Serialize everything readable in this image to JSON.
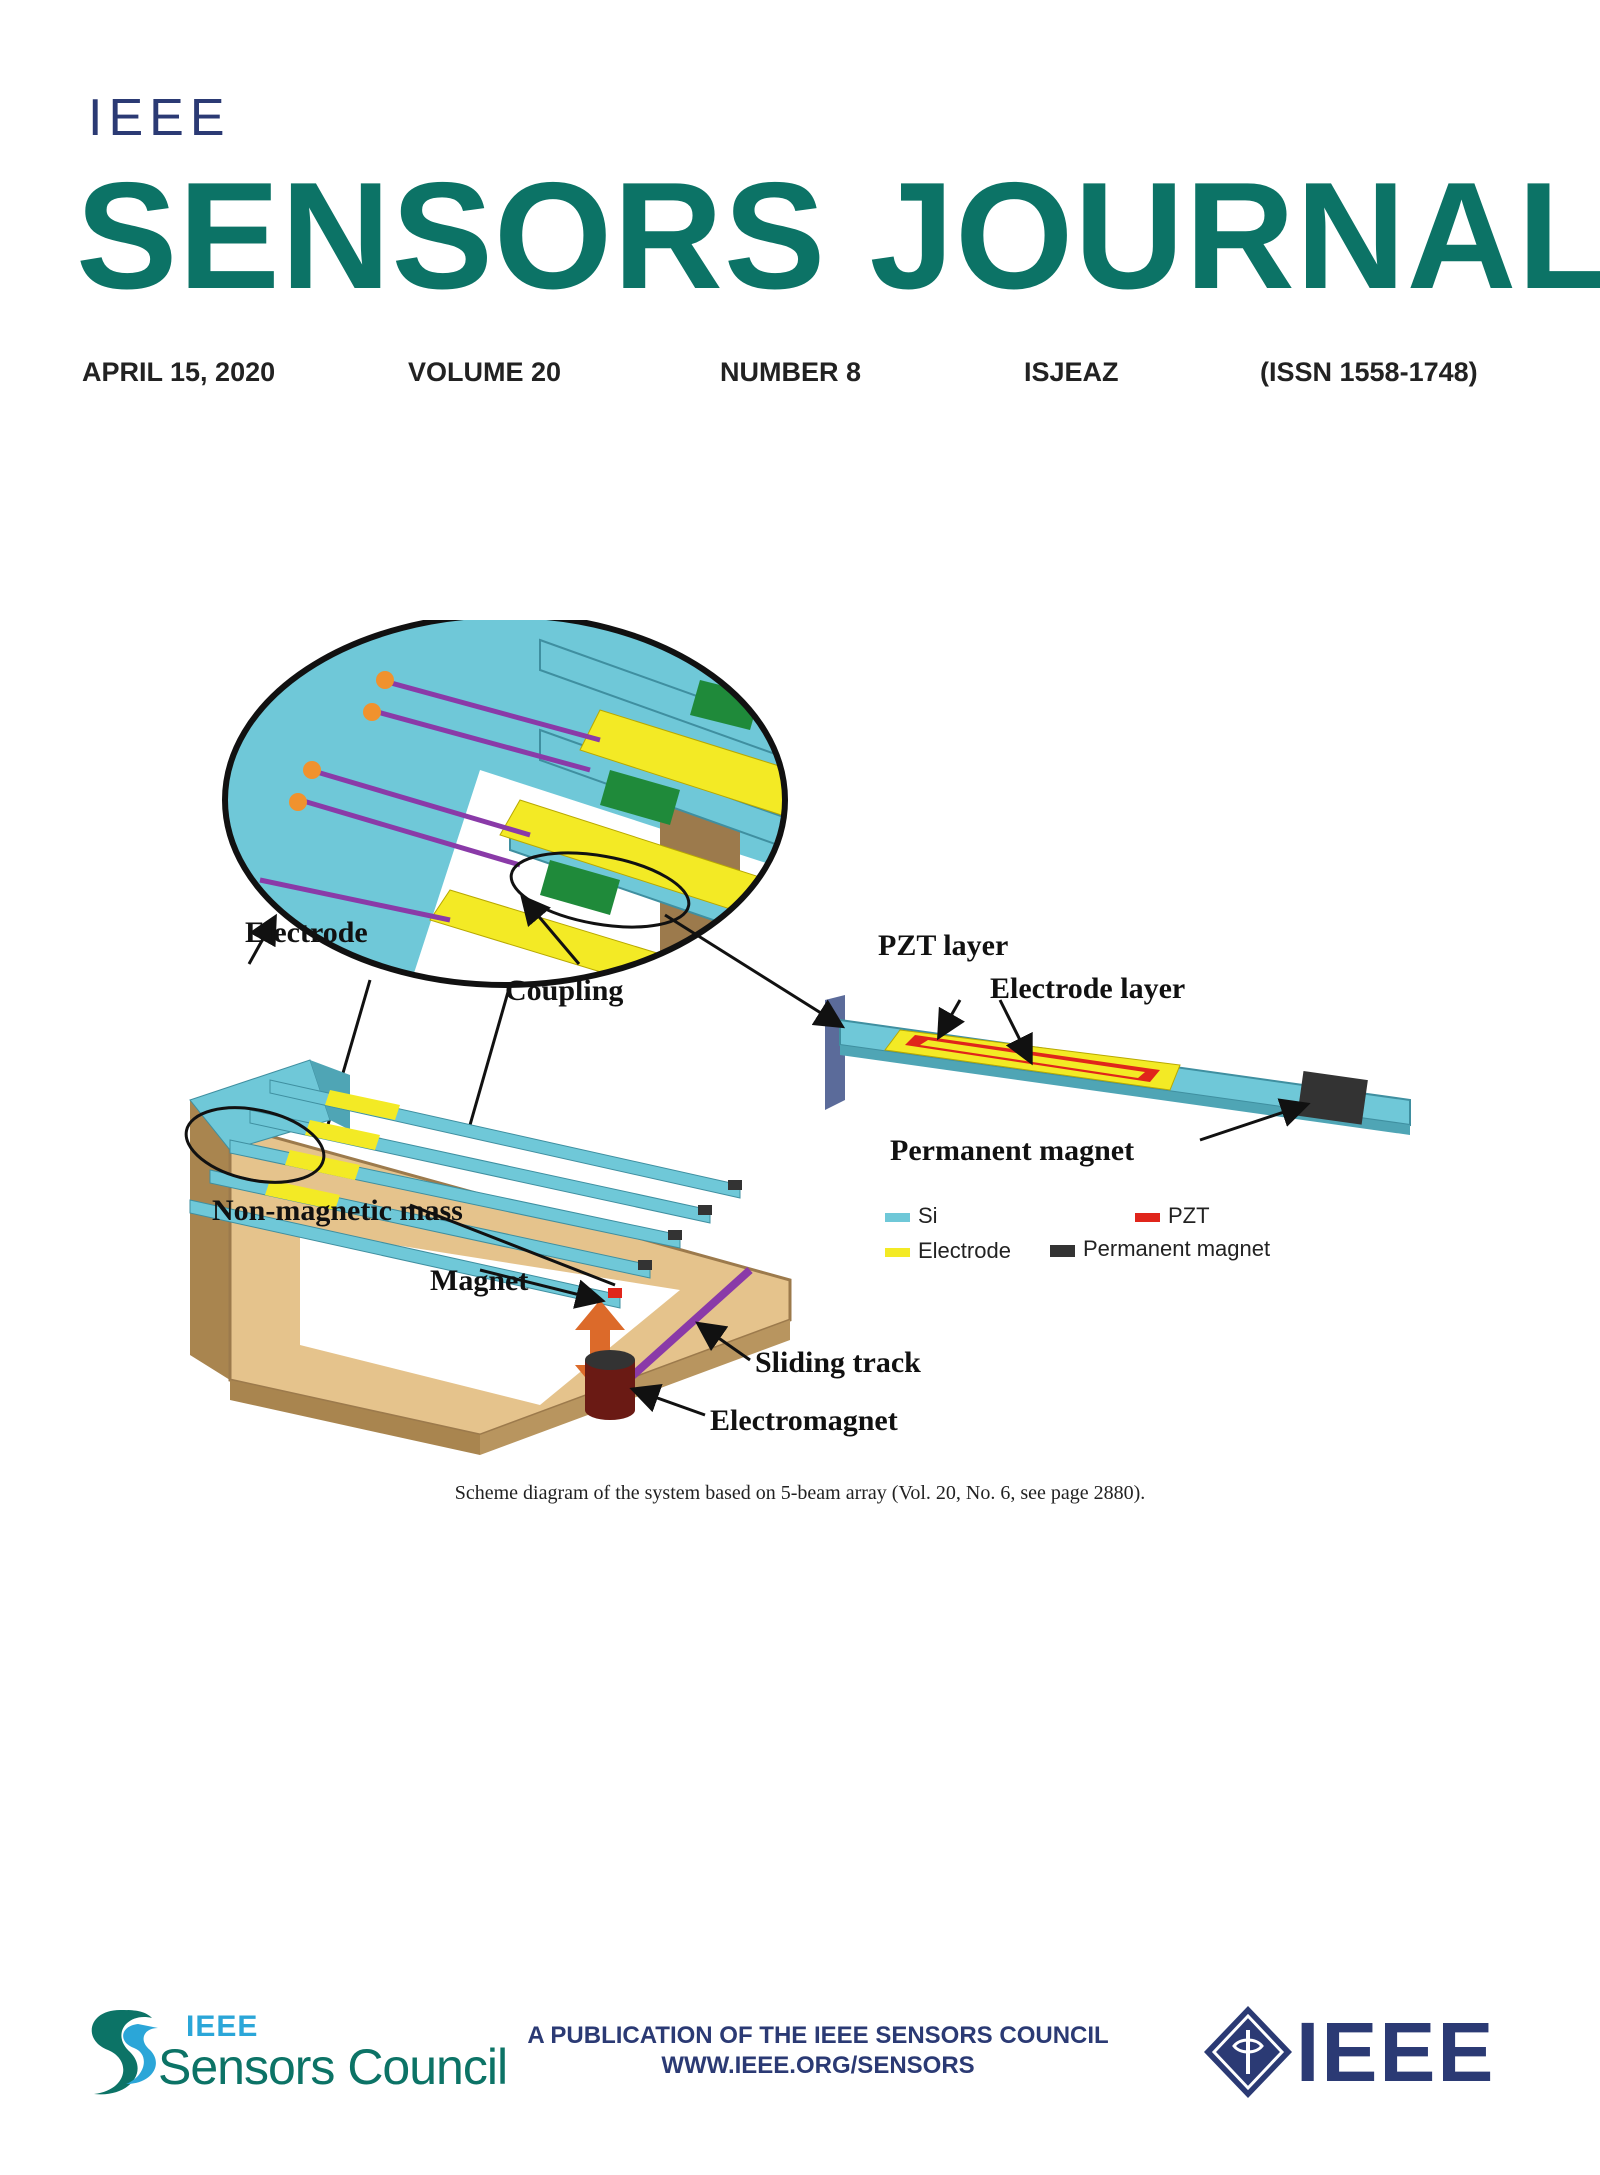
{
  "header": {
    "brand": "IEEE",
    "title": "SENSORS JOURNAL",
    "date": "APRIL 15, 2020",
    "volume": "VOLUME 20",
    "number": "NUMBER 8",
    "code": "ISJEAZ",
    "issn": "(ISSN 1558-1748)"
  },
  "figure": {
    "labels": {
      "electrode": "Electrode",
      "coupling": "Coupling",
      "pzt_layer": "PZT layer",
      "electrode_layer": "Electrode layer",
      "permanent_magnet": "Permanent magnet",
      "non_magnetic_mass": "Non-magnetic mass",
      "magnet": "Magnet",
      "sliding_track": "Sliding track",
      "electromagnet": "Electromagnet"
    },
    "legend": {
      "si": "Si",
      "pzt": "PZT",
      "electrode": "Electrode",
      "permanent_magnet": "Permanent magnet"
    },
    "colors": {
      "si": "#6fc8d8",
      "electrode": "#f3ea25",
      "pzt": "#e0251b",
      "permanent_magnet": "#333333",
      "coupling": "#1f8a3a",
      "frame": "#e5c38c",
      "arrow": "#dc6a2a"
    },
    "caption": "Scheme diagram of the system based on 5-beam array (Vol. 20, No. 6, see page 2880)."
  },
  "footer": {
    "council_ieee": "IEEE",
    "council_name": "Sensors Council",
    "publication_line": "A PUBLICATION OF THE IEEE SENSORS COUNCIL",
    "website": "WWW.IEEE.ORG/SENSORS",
    "ieee_logo_text": "IEEE"
  }
}
